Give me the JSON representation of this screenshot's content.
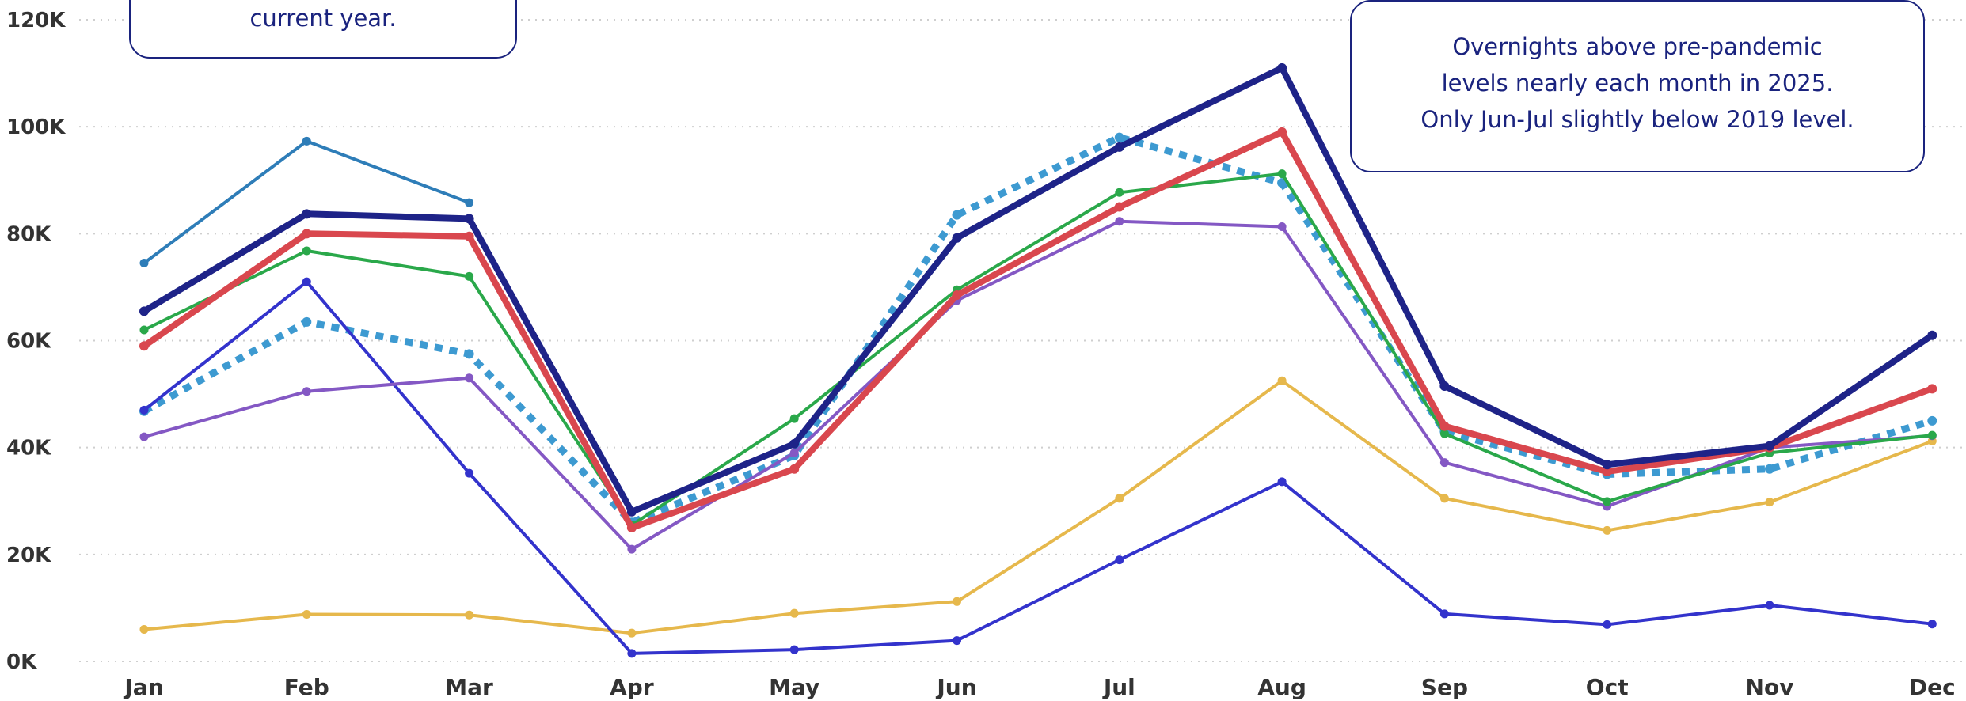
{
  "colors": {
    "grid": "#cfcfcf",
    "tick_text": "#333333",
    "annotation_border": "#1a237e",
    "annotation_text": "#1a237e"
  },
  "annotations": {
    "left": {
      "lines": [
        "current year."
      ]
    },
    "right": {
      "lines": [
        "Overnights above pre-pandemic",
        "levels nearly each month in 2025.",
        "Only Jun-Jul slightly below 2019 level."
      ]
    }
  },
  "chart_data": {
    "type": "line",
    "title": "",
    "xlabel": "",
    "ylabel": "",
    "categories": [
      "Jan",
      "Feb",
      "Mar",
      "Apr",
      "May",
      "Jun",
      "Jul",
      "Aug",
      "Sep",
      "Oct",
      "Nov",
      "Dec"
    ],
    "ylim": [
      0,
      120000
    ],
    "yticks": [
      0,
      20000,
      40000,
      60000,
      80000,
      100000,
      120000
    ],
    "ytick_labels": [
      "0K",
      "20K",
      "40K",
      "60K",
      "80K",
      "100K",
      "120K"
    ],
    "grid": "horizontal-dotted",
    "series": [
      {
        "color": "#3d9ad1",
        "style": "dotted",
        "width": 9,
        "markers": true,
        "values": [
          46800,
          63500,
          57500,
          26000,
          38500,
          83500,
          98000,
          89500,
          43000,
          35000,
          36000,
          45000
        ]
      },
      {
        "color": "#e6b84c",
        "style": "solid",
        "width": 4,
        "markers": true,
        "values": [
          6000,
          8800,
          8700,
          5300,
          9000,
          11200,
          30500,
          52500,
          30500,
          24500,
          29800,
          41200
        ]
      },
      {
        "color": "#3333cc",
        "style": "solid",
        "width": 4,
        "markers": true,
        "values": [
          47000,
          71000,
          35200,
          1500,
          2200,
          3900,
          19000,
          33600,
          8900,
          6900,
          10500,
          7000
        ]
      },
      {
        "color": "#2e7db8",
        "style": "solid",
        "width": 4,
        "markers": true,
        "values": [
          74500,
          97300,
          85800,
          null,
          null,
          null,
          null,
          null,
          null,
          null,
          null,
          null
        ]
      },
      {
        "color": "#8458c4",
        "style": "solid",
        "width": 4,
        "markers": true,
        "values": [
          42000,
          50500,
          53000,
          21000,
          39000,
          67500,
          82300,
          81300,
          37200,
          29000,
          40000,
          42200
        ]
      },
      {
        "color": "#2aa84a",
        "style": "solid",
        "width": 4,
        "markers": true,
        "values": [
          62000,
          76800,
          72000,
          25500,
          45400,
          69500,
          87700,
          91200,
          42600,
          29900,
          39000,
          42300
        ]
      },
      {
        "color": "#d9474e",
        "style": "solid",
        "width": 8,
        "markers": true,
        "values": [
          59000,
          80000,
          79500,
          25000,
          36000,
          68500,
          85000,
          99000,
          44000,
          35500,
          40000,
          51000
        ]
      },
      {
        "color": "#1e2388",
        "style": "solid",
        "width": 8,
        "markers": true,
        "values": [
          65500,
          83700,
          82800,
          28000,
          40700,
          79200,
          96200,
          111000,
          51500,
          36800,
          40300,
          61000
        ]
      }
    ]
  }
}
